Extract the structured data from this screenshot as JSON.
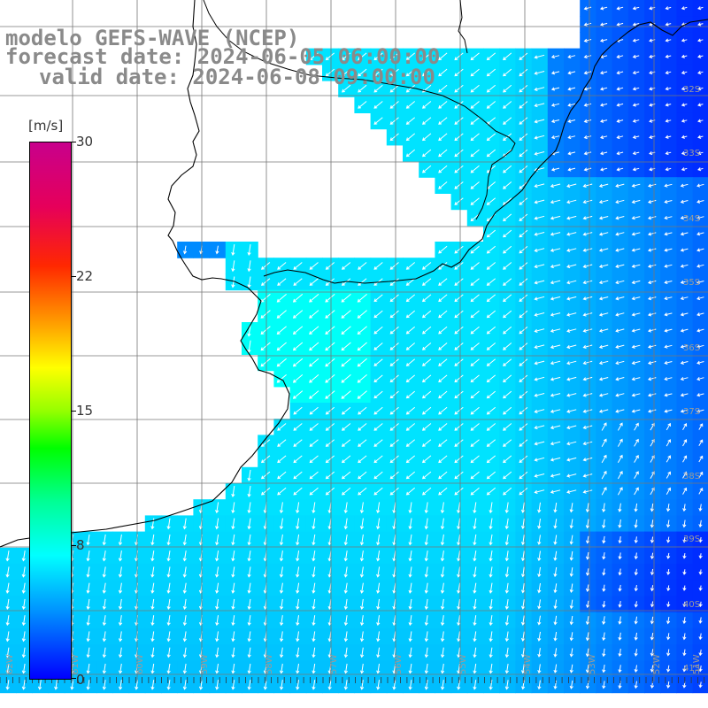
{
  "title": {
    "line1": "modelo GEFS-WAVE (NCEP)",
    "line2": "forecast date: 2024-06-05 06:00:00",
    "line3": "valid date: 2024-06-08 09:00:00"
  },
  "colorbar": {
    "unit": "[m/s]",
    "ticks": [
      "30",
      "22",
      "15",
      "8",
      "0"
    ],
    "tick_values": [
      30,
      22,
      15,
      8,
      0
    ],
    "range": [
      0,
      30
    ]
  },
  "latitude_labels": [
    "32S",
    "33S",
    "34S",
    "35S",
    "36S",
    "37S",
    "38S",
    "39S",
    "40S",
    "41S"
  ],
  "longitude_labels": [
    "62W",
    "61W",
    "60W",
    "59W",
    "58W",
    "57W",
    "56W",
    "55W",
    "54W",
    "53W",
    "52W",
    "51W"
  ],
  "colors": {
    "land": "#ffffff",
    "coastline": "#000000",
    "grid": "#7a7a7a",
    "arrows": "#ffffff",
    "title_text": "#8a8a8a"
  }
}
